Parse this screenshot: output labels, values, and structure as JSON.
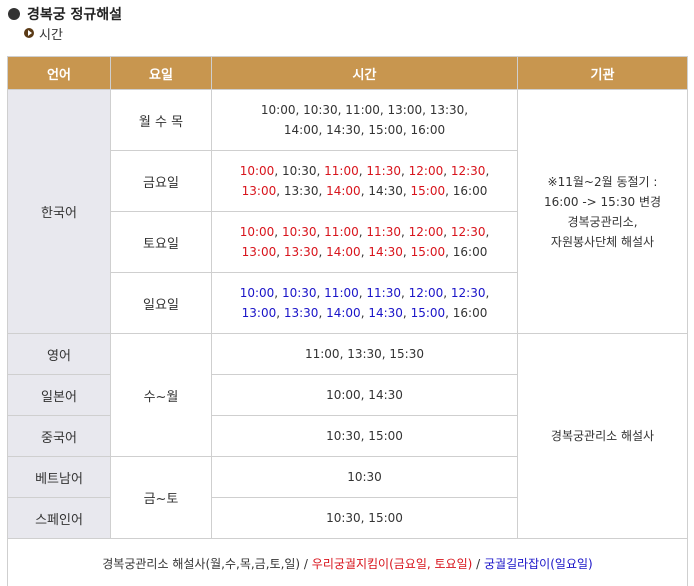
{
  "heading": "경복궁 정규해설",
  "subheading": "시간",
  "columns": [
    "언어",
    "요일",
    "시간",
    "기관"
  ],
  "korean": {
    "language": "한국어",
    "rows": [
      {
        "day": "월 수 목",
        "line1": [
          [
            "k",
            "10:00, 10:30, 11:00, 13:00, 13:30,"
          ]
        ],
        "line2": [
          [
            "k",
            "14:00, 14:30, 15:00, 16:00"
          ]
        ]
      },
      {
        "day": "금요일",
        "line1": [
          [
            "r",
            "10:00"
          ],
          [
            "k",
            ", 10:30, "
          ],
          [
            "r",
            "11:00"
          ],
          [
            "k",
            ", "
          ],
          [
            "r",
            "11:30"
          ],
          [
            "k",
            ", "
          ],
          [
            "r",
            "12:00"
          ],
          [
            "k",
            ", "
          ],
          [
            "r",
            "12:30"
          ],
          [
            "k",
            ","
          ]
        ],
        "line2": [
          [
            "r",
            "13:00"
          ],
          [
            "k",
            ", 13:30, "
          ],
          [
            "r",
            "14:00"
          ],
          [
            "k",
            ", 14:30, "
          ],
          [
            "r",
            "15:00"
          ],
          [
            "k",
            ", 16:00"
          ]
        ]
      },
      {
        "day": "토요일",
        "line1": [
          [
            "r",
            "10:00"
          ],
          [
            "k",
            ", "
          ],
          [
            "r",
            "10:30"
          ],
          [
            "k",
            ", "
          ],
          [
            "r",
            "11:00"
          ],
          [
            "k",
            ", "
          ],
          [
            "r",
            "11:30"
          ],
          [
            "k",
            ", "
          ],
          [
            "r",
            "12:00"
          ],
          [
            "k",
            ", "
          ],
          [
            "r",
            "12:30"
          ],
          [
            "k",
            ","
          ]
        ],
        "line2": [
          [
            "r",
            "13:00"
          ],
          [
            "k",
            ", "
          ],
          [
            "r",
            "13:30"
          ],
          [
            "k",
            ", "
          ],
          [
            "r",
            "14:00"
          ],
          [
            "k",
            ", "
          ],
          [
            "r",
            "14:30"
          ],
          [
            "k",
            ", "
          ],
          [
            "r",
            "15:00"
          ],
          [
            "k",
            ", 16:00"
          ]
        ]
      },
      {
        "day": "일요일",
        "line1": [
          [
            "b",
            "10:00"
          ],
          [
            "k",
            ", "
          ],
          [
            "b",
            "10:30"
          ],
          [
            "k",
            ", "
          ],
          [
            "b",
            "11:00"
          ],
          [
            "k",
            ", "
          ],
          [
            "b",
            "11:30"
          ],
          [
            "k",
            ", "
          ],
          [
            "b",
            "12:00"
          ],
          [
            "k",
            ", "
          ],
          [
            "b",
            "12:30"
          ],
          [
            "k",
            ","
          ]
        ],
        "line2": [
          [
            "b",
            "13:00"
          ],
          [
            "k",
            ", "
          ],
          [
            "b",
            "13:30"
          ],
          [
            "k",
            ", "
          ],
          [
            "b",
            "14:00"
          ],
          [
            "k",
            ", "
          ],
          [
            "b",
            "14:30"
          ],
          [
            "k",
            ", "
          ],
          [
            "b",
            "15:00"
          ],
          [
            "k",
            ", 16:00"
          ]
        ]
      }
    ],
    "org_line1": "※11월~2월 동절기 :",
    "org_line2": "16:00 -> 15:30 변경",
    "org_line3": "경복궁관리소,",
    "org_line4": "자원봉사단체 해설사"
  },
  "foreign": {
    "day_group1": "수~월",
    "day_group2": "금~토",
    "org": "경복궁관리소 해설사",
    "rows": [
      {
        "language": "영어",
        "times": "11:00, 13:30, 15:30"
      },
      {
        "language": "일본어",
        "times": "10:00, 14:30"
      },
      {
        "language": "중국어",
        "times": "10:30, 15:00"
      },
      {
        "language": "베트남어",
        "times": "10:30"
      },
      {
        "language": "스페인어",
        "times": "10:30, 15:00"
      }
    ]
  },
  "footer": {
    "part1": "경복궁관리소 해설사(월,수,목,금,토,일) / ",
    "part2": "우리궁궐지킴이(금요일, 토요일)",
    "part3": " / ",
    "part4": "궁궐길라잡이(일요일)"
  },
  "colors": {
    "header_bg": "#c8964f",
    "lang_bg": "#e8e8ee",
    "red": "#d8141c",
    "blue": "#1a14c8"
  }
}
